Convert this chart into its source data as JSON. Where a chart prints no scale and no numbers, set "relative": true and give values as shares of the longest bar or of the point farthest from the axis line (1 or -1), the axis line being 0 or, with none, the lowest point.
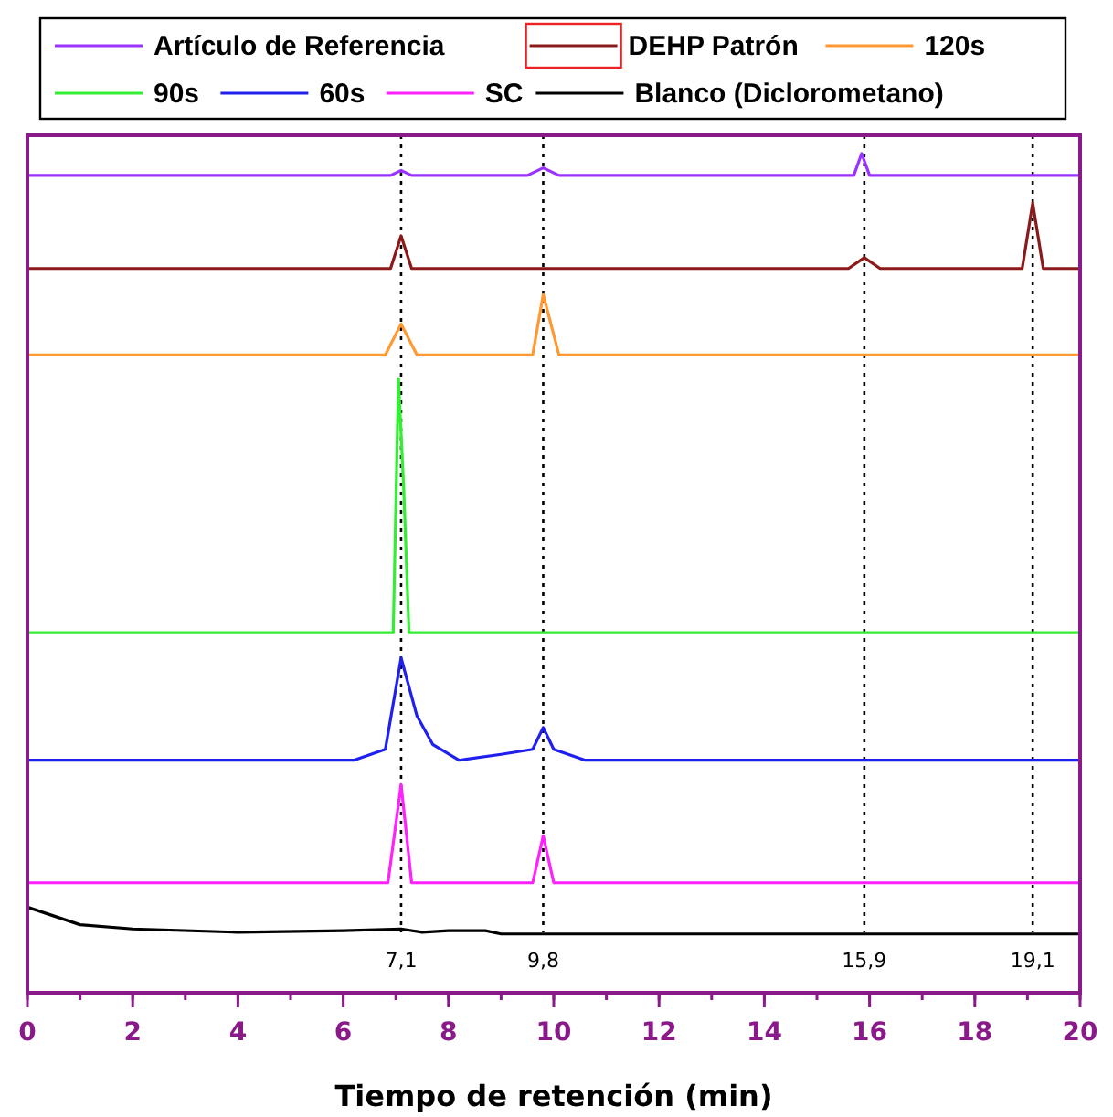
{
  "chart_data": {
    "type": "line",
    "relative": true,
    "xlabel": "Tiempo de retención (min)",
    "xlim": [
      0,
      20
    ],
    "xticks": [
      0,
      2,
      4,
      6,
      8,
      10,
      12,
      14,
      16,
      18,
      20
    ],
    "legend": "top",
    "line_style": "solid",
    "marker": "none",
    "grid": false,
    "ref_lines": [
      {
        "axis": "x",
        "value": 7.1,
        "label": "7,1",
        "line_style": "dotted",
        "color": "#000000"
      },
      {
        "axis": "x",
        "value": 9.8,
        "label": "9,8",
        "line_style": "dotted",
        "color": "#000000"
      },
      {
        "axis": "x",
        "value": 15.9,
        "label": "15,9",
        "line_style": "dotted",
        "color": "#000000"
      },
      {
        "axis": "x",
        "value": 19.1,
        "label": "19,1",
        "line_style": "dotted",
        "color": "#000000"
      }
    ],
    "series": [
      {
        "name": "Artículo de Referencia",
        "color": "#9933ff",
        "x": [
          0,
          6.9,
          7.1,
          7.3,
          9.5,
          9.8,
          10.1,
          15.7,
          15.85,
          16.0,
          20
        ],
        "values": [
          0.974,
          0.974,
          0.98,
          0.974,
          0.974,
          0.983,
          0.974,
          0.974,
          1,
          0.974,
          0.974
        ]
      },
      {
        "name": "DEHP Patrón",
        "color": "#8b1a1a",
        "x": [
          0,
          6.9,
          7.1,
          7.3,
          15.6,
          15.9,
          16.2,
          18.9,
          19.1,
          19.3,
          20
        ],
        "values": [
          0.863,
          0.863,
          0.902,
          0.863,
          0.863,
          0.876,
          0.863,
          0.863,
          0.941,
          0.863,
          0.863
        ]
      },
      {
        "name": "120s",
        "color": "#ff9933",
        "x": [
          0,
          6.8,
          7.1,
          7.4,
          9.6,
          9.8,
          10.1,
          20
        ],
        "values": [
          0.76,
          0.76,
          0.797,
          0.76,
          0.76,
          0.832,
          0.76,
          0.76
        ]
      },
      {
        "name": "90s",
        "color": "#33ee33",
        "x": [
          0,
          6.95,
          7.05,
          7.15,
          7.25,
          20
        ],
        "values": [
          0.429,
          0.429,
          0.732,
          0.6,
          0.429,
          0.429
        ]
      },
      {
        "name": "60s",
        "color": "#1f1fee",
        "x": [
          0,
          6.2,
          6.8,
          7.1,
          7.4,
          7.7,
          8.2,
          9.0,
          9.6,
          9.8,
          10.0,
          10.6,
          20
        ],
        "values": [
          0.277,
          0.277,
          0.29,
          0.399,
          0.33,
          0.296,
          0.277,
          0.284,
          0.29,
          0.316,
          0.29,
          0.277,
          0.277
        ]
      },
      {
        "name": "SC",
        "color": "#ff22ff",
        "x": [
          0,
          6.85,
          7.1,
          7.3,
          9.6,
          9.8,
          10.0,
          20
        ],
        "values": [
          0.131,
          0.131,
          0.248,
          0.131,
          0.131,
          0.187,
          0.131,
          0.131
        ]
      },
      {
        "name": "Blanco (Diclorometano)",
        "color": "#000000",
        "x": [
          0,
          1,
          2,
          4,
          6,
          7.1,
          7.5,
          8,
          8.7,
          9,
          20
        ],
        "values": [
          0.102,
          0.081,
          0.076,
          0.072,
          0.074,
          0.076,
          0.072,
          0.074,
          0.074,
          0.07,
          0.07
        ]
      }
    ]
  }
}
